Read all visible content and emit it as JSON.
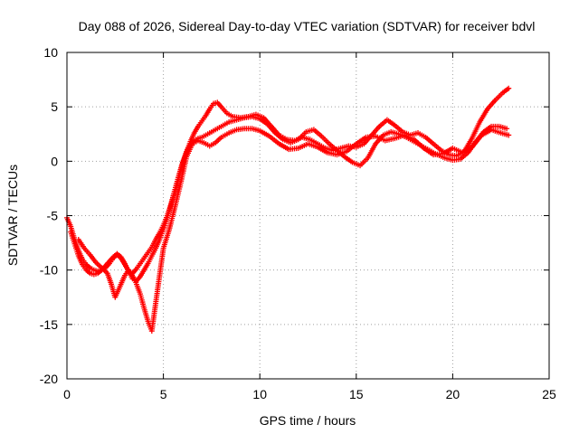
{
  "chart_data": {
    "type": "scatter",
    "title": "Day 088 of 2026, Sidereal Day-to-day VTEC variation (SDTVAR) for receiver bdvl",
    "xlabel": "GPS time / hours",
    "ylabel": "SDTVAR / TECUs",
    "xlim": [
      0,
      25
    ],
    "ylim": [
      -20,
      10
    ],
    "xticks": [
      "0",
      "5",
      "10",
      "15",
      "20",
      "25"
    ],
    "yticks": [
      "-20",
      "-15",
      "-10",
      "-5",
      "0",
      "5",
      "10"
    ],
    "grid": true,
    "marker_color": "#ff0000",
    "series": [
      {
        "name": "track-1",
        "x": [
          0.0,
          0.2,
          0.4,
          0.6,
          0.8,
          1.0,
          1.2,
          1.4,
          1.6,
          1.8,
          2.0,
          2.2,
          2.4,
          2.6,
          2.8,
          3.0,
          3.2,
          3.4,
          3.6,
          3.8,
          4.0,
          4.2,
          4.4,
          4.6,
          4.8,
          5.0,
          5.2,
          5.4,
          5.6,
          5.8,
          6.0,
          6.2,
          6.4,
          6.6,
          6.8,
          7.0,
          7.2,
          7.4,
          7.6,
          7.8,
          8.0,
          8.3,
          8.6,
          9.0,
          9.4,
          9.8,
          10.2,
          10.6,
          11.0,
          11.4,
          11.8,
          12.2,
          12.6,
          13.0,
          13.4,
          13.8,
          14.2,
          14.6,
          15.0,
          15.4,
          15.8,
          16.2,
          16.6,
          17.0,
          17.4,
          17.8,
          18.2,
          18.6,
          19.0,
          19.4,
          19.8,
          20.2,
          20.6,
          21.0,
          21.4,
          21.8,
          22.2,
          22.6,
          22.9
        ],
        "y": [
          -5.2,
          -6.0,
          -7.2,
          -8.2,
          -9.0,
          -9.5,
          -9.8,
          -10.0,
          -10.1,
          -10.0,
          -9.8,
          -9.4,
          -8.9,
          -8.6,
          -8.9,
          -9.5,
          -10.1,
          -10.3,
          -9.9,
          -9.4,
          -8.9,
          -8.4,
          -7.9,
          -7.2,
          -6.6,
          -5.9,
          -5.0,
          -4.0,
          -2.8,
          -1.5,
          -0.2,
          0.9,
          1.8,
          2.6,
          3.2,
          3.7,
          4.2,
          4.8,
          5.3,
          5.4,
          5.0,
          4.4,
          4.1,
          4.0,
          4.1,
          4.3,
          4.0,
          3.2,
          2.4,
          2.0,
          1.9,
          2.2,
          2.0,
          1.6,
          1.2,
          1.0,
          1.2,
          1.4,
          1.3,
          1.6,
          2.4,
          3.2,
          3.8,
          3.3,
          2.7,
          2.4,
          2.6,
          2.2,
          1.6,
          1.0,
          0.6,
          0.5,
          0.9,
          2.1,
          3.6,
          4.8,
          5.6,
          6.3,
          6.7
        ]
      },
      {
        "name": "track-2",
        "x": [
          0.2,
          0.4,
          0.6,
          0.8,
          1.0,
          1.2,
          1.4,
          1.6,
          1.8,
          2.0,
          2.2,
          2.4,
          2.6,
          2.8,
          3.0,
          3.2,
          3.4,
          3.6,
          3.8,
          4.0,
          4.2,
          4.4,
          4.6,
          4.8,
          5.0,
          5.2,
          5.4,
          5.6,
          5.8,
          6.0,
          6.2,
          6.4,
          6.6,
          6.8,
          7.0,
          7.2,
          7.5,
          7.8,
          8.1,
          8.4,
          8.8,
          9.2,
          9.6,
          10.0,
          10.4,
          10.8,
          11.2,
          11.6,
          12.0,
          12.4,
          12.8,
          13.2,
          13.6,
          14.0,
          14.4,
          14.8,
          15.2,
          15.6,
          16.0,
          16.4,
          16.8,
          17.2,
          17.6,
          18.0,
          18.4,
          18.8,
          19.2,
          19.6,
          20.0,
          20.4,
          20.8,
          21.2,
          21.6,
          22.0,
          22.4,
          22.8
        ],
        "y": [
          -6.5,
          -7.6,
          -8.7,
          -9.5,
          -10.0,
          -10.3,
          -10.4,
          -10.3,
          -10.0,
          -9.6,
          -9.2,
          -8.8,
          -8.5,
          -8.8,
          -9.4,
          -10.1,
          -10.8,
          -11.0,
          -10.6,
          -10.0,
          -9.4,
          -8.7,
          -8.0,
          -7.2,
          -6.3,
          -5.2,
          -3.9,
          -2.6,
          -1.3,
          -0.1,
          0.8,
          1.5,
          1.9,
          2.1,
          2.2,
          2.4,
          2.7,
          3.0,
          3.3,
          3.6,
          3.8,
          4.0,
          4.1,
          3.9,
          3.4,
          2.6,
          2.0,
          1.7,
          2.0,
          2.7,
          2.9,
          2.3,
          1.6,
          1.0,
          0.4,
          -0.1,
          -0.4,
          0.3,
          1.6,
          2.4,
          2.7,
          2.5,
          2.2,
          1.8,
          1.4,
          1.0,
          0.6,
          0.3,
          0.1,
          0.2,
          0.8,
          1.8,
          2.7,
          3.2,
          3.2,
          3.0
        ]
      },
      {
        "name": "track-3",
        "x": [
          0.6,
          0.9,
          1.2,
          1.5,
          1.8,
          2.1,
          2.3,
          2.5,
          3.0,
          3.2,
          3.5,
          3.8,
          4.0,
          4.2,
          4.4,
          5.0,
          5.3,
          5.6,
          5.9,
          6.2,
          6.5,
          6.8,
          7.1,
          7.4,
          7.7,
          8.0,
          8.4,
          8.8,
          9.2,
          9.6,
          10.0,
          10.5,
          11.0,
          11.5,
          12.0,
          12.5,
          13.0,
          13.5,
          14.0,
          14.5,
          15.0,
          15.5,
          16.0,
          16.5,
          17.0,
          17.5,
          18.0,
          18.5,
          19.0,
          19.5,
          20.0,
          20.5,
          21.0,
          21.5,
          22.0,
          22.5,
          22.9
        ],
        "y": [
          -7.2,
          -8.0,
          -8.6,
          -9.3,
          -9.8,
          -10.3,
          -11.3,
          -12.5,
          -10.5,
          -10.0,
          -10.8,
          -12.2,
          -13.5,
          -14.7,
          -15.6,
          -8.0,
          -6.3,
          -4.2,
          -2.0,
          0.4,
          1.6,
          1.9,
          1.7,
          1.4,
          1.7,
          2.2,
          2.6,
          2.9,
          3.0,
          3.0,
          2.8,
          2.3,
          1.6,
          1.1,
          1.2,
          1.6,
          1.3,
          0.8,
          0.6,
          0.9,
          1.6,
          2.2,
          2.3,
          1.9,
          2.1,
          2.4,
          2.0,
          1.2,
          0.6,
          0.7,
          1.2,
          0.8,
          1.3,
          2.4,
          2.9,
          2.6,
          2.4
        ]
      }
    ]
  }
}
